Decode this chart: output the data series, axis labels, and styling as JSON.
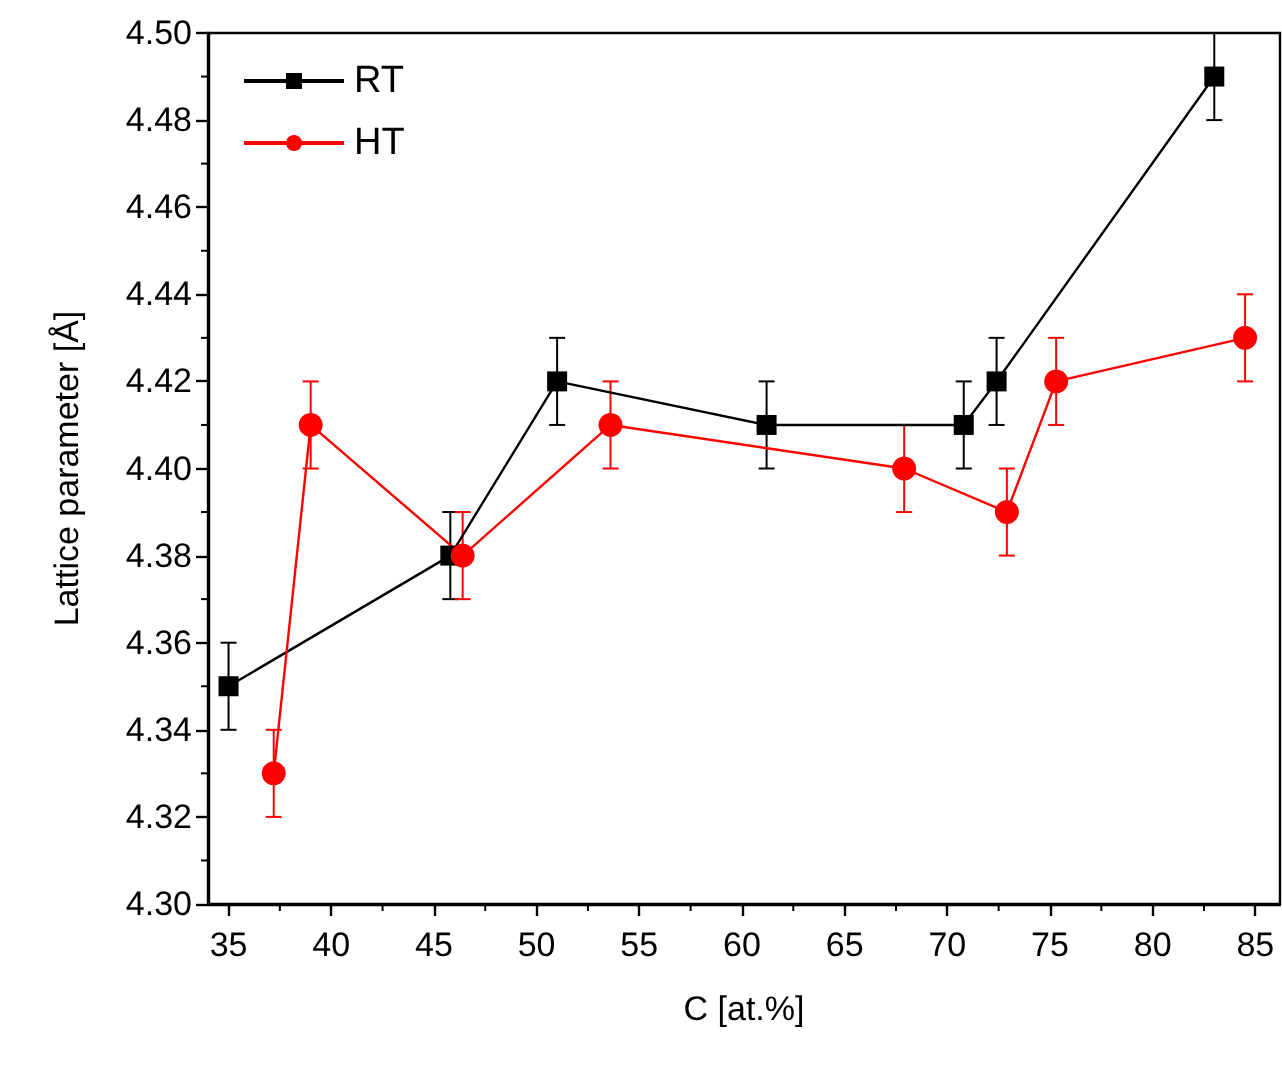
{
  "chart_data": {
    "type": "line",
    "xlabel": "C [at.%]",
    "ylabel": "Lattice parameter [Å]",
    "xlim": [
      34,
      86.2
    ],
    "xticks": [
      35,
      40,
      45,
      50,
      55,
      60,
      65,
      70,
      75,
      80,
      85
    ],
    "ylim": [
      4.3,
      4.5
    ],
    "yticks": [
      {
        "value": 4.3,
        "label": "4.30"
      },
      {
        "value": 4.32,
        "label": "4.32"
      },
      {
        "value": 4.34,
        "label": "4.34"
      },
      {
        "value": 4.36,
        "label": "4.36"
      },
      {
        "value": 4.38,
        "label": "4.38"
      },
      {
        "value": 4.4,
        "label": "4.40"
      },
      {
        "value": 4.42,
        "label": "4.42"
      },
      {
        "value": 4.44,
        "label": "4.44"
      },
      {
        "value": 4.46,
        "label": "4.46"
      },
      {
        "value": 4.48,
        "label": "4.48"
      },
      {
        "value": 4.5,
        "label": "4.50"
      }
    ],
    "grid": false,
    "legend": "top left",
    "line_style": "solid",
    "series": [
      {
        "name": "RT",
        "color": "#000000",
        "marker": "square",
        "x": [
          35,
          45.8,
          51,
          61.2,
          70.8,
          72.4,
          83
        ],
        "values": [
          4.35,
          4.38,
          4.42,
          4.41,
          4.41,
          4.42,
          4.49
        ],
        "errors": [
          0.01,
          0.01,
          0.01,
          0.01,
          0.01,
          0.01,
          0.01
        ]
      },
      {
        "name": "HT",
        "color": "#ff0000",
        "marker": "circle",
        "x": [
          37.2,
          39,
          46.4,
          53.6,
          67.9,
          72.9,
          75.3,
          84.5
        ],
        "values": [
          4.33,
          4.41,
          4.38,
          4.41,
          4.4,
          4.39,
          4.42,
          4.43
        ],
        "errors": [
          0.01,
          0.01,
          0.01,
          0.01,
          0.01,
          0.01,
          0.01,
          0.01
        ]
      }
    ]
  }
}
